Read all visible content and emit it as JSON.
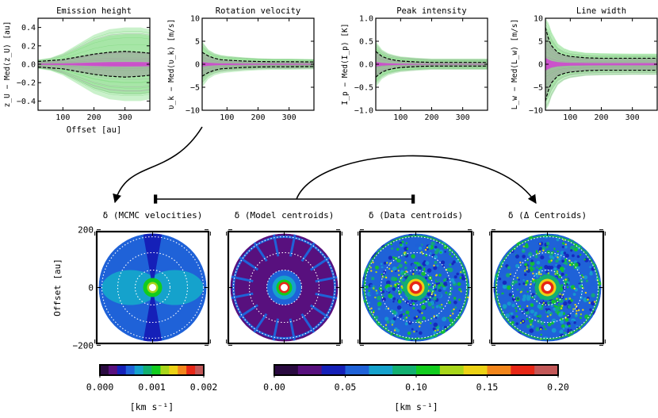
{
  "chart_data": [
    {
      "type": "line",
      "title": "Emission height",
      "xlabel": "Offset [au]",
      "ylabel": "z_U − Med(z_U) [au]",
      "xlim": [
        20,
        380
      ],
      "ylim": [
        -0.5,
        0.5
      ],
      "xticks": [
        "100",
        "200",
        "300"
      ],
      "yticks": [
        "0.4",
        "0.2",
        "0.0",
        "−0.2",
        "−0.4"
      ],
      "x": [
        20,
        60,
        100,
        150,
        200,
        250,
        300,
        350,
        380
      ],
      "series": [
        {
          "name": "upper envelope",
          "values": [
            0.03,
            0.04,
            0.05,
            0.08,
            0.11,
            0.13,
            0.14,
            0.13,
            0.12
          ]
        },
        {
          "name": "lower envelope",
          "values": [
            -0.03,
            -0.04,
            -0.05,
            -0.08,
            -0.11,
            -0.13,
            -0.14,
            -0.13,
            -0.12
          ]
        },
        {
          "name": "green spread",
          "values": [
            0.05,
            0.07,
            0.12,
            0.22,
            0.32,
            0.38,
            0.4,
            0.4,
            0.38
          ]
        }
      ]
    },
    {
      "type": "line",
      "title": "Rotation velocity",
      "xlabel": "",
      "ylabel": "υ_k − Med(υ_k) [m/s]",
      "xlim": [
        20,
        380
      ],
      "ylim": [
        -10,
        10
      ],
      "xticks": [
        "100",
        "200",
        "300"
      ],
      "yticks": [
        "10",
        "5",
        "0",
        "−5",
        "−10"
      ],
      "x": [
        20,
        40,
        60,
        80,
        100,
        150,
        200,
        250,
        300,
        380
      ],
      "series": [
        {
          "name": "upper envelope",
          "values": [
            2.6,
            1.8,
            1.3,
            1.0,
            0.9,
            0.7,
            0.6,
            0.55,
            0.55,
            0.5
          ]
        },
        {
          "name": "lower envelope",
          "values": [
            -2.6,
            -1.8,
            -1.3,
            -1.0,
            -0.9,
            -0.7,
            -0.6,
            -0.55,
            -0.55,
            -0.5
          ]
        },
        {
          "name": "green spread",
          "values": [
            5.0,
            3.2,
            2.4,
            2.0,
            1.8,
            1.5,
            1.3,
            1.2,
            1.2,
            1.1
          ]
        }
      ]
    },
    {
      "type": "line",
      "title": "Peak intensity",
      "xlabel": "",
      "ylabel": "I_p − Med(I_p) [K]",
      "xlim": [
        20,
        380
      ],
      "ylim": [
        -1.0,
        1.0
      ],
      "xticks": [
        "100",
        "200",
        "300"
      ],
      "yticks": [
        "1.0",
        "0.5",
        "0.0",
        "−0.5",
        "−1.0"
      ],
      "x": [
        20,
        40,
        60,
        80,
        100,
        150,
        200,
        250,
        300,
        380
      ],
      "series": [
        {
          "name": "upper envelope",
          "values": [
            0.28,
            0.17,
            0.12,
            0.09,
            0.07,
            0.05,
            0.04,
            0.04,
            0.04,
            0.04
          ]
        },
        {
          "name": "lower envelope",
          "values": [
            -0.28,
            -0.17,
            -0.12,
            -0.09,
            -0.07,
            -0.05,
            -0.04,
            -0.04,
            -0.04,
            -0.04
          ]
        },
        {
          "name": "green spread",
          "values": [
            0.5,
            0.32,
            0.24,
            0.2,
            0.17,
            0.14,
            0.12,
            0.12,
            0.12,
            0.12
          ]
        }
      ]
    },
    {
      "type": "line",
      "title": "Line width",
      "xlabel": "",
      "ylabel": "L_w − Med(L_w) [m/s]",
      "xlim": [
        20,
        380
      ],
      "ylim": [
        -10,
        10
      ],
      "xticks": [
        "100",
        "200",
        "300"
      ],
      "yticks": [
        "10",
        "5",
        "0",
        "−5",
        "−10"
      ],
      "x": [
        20,
        30,
        40,
        60,
        80,
        100,
        150,
        200,
        300,
        380
      ],
      "series": [
        {
          "name": "upper envelope",
          "values": [
            8.0,
            5.5,
            4.0,
            2.5,
            2.0,
            1.7,
            1.4,
            1.3,
            1.3,
            1.3
          ]
        },
        {
          "name": "lower envelope",
          "values": [
            -8.0,
            -5.5,
            -4.0,
            -2.5,
            -2.0,
            -1.7,
            -1.4,
            -1.3,
            -1.3,
            -1.3
          ]
        },
        {
          "name": "green spread",
          "values": [
            10,
            9.0,
            7.0,
            4.5,
            3.5,
            3.0,
            2.5,
            2.4,
            2.3,
            2.3
          ]
        }
      ]
    },
    {
      "type": "heatmap",
      "title": "δ (MCMC velocities)",
      "ylabel": "Offset [au]",
      "yticks": [
        "200",
        "0",
        "−200"
      ],
      "colorbar": "small"
    },
    {
      "type": "heatmap",
      "title": "δ (Model centroids)",
      "colorbar": "large"
    },
    {
      "type": "heatmap",
      "title": "δ (Data centroids)",
      "colorbar": "large"
    },
    {
      "type": "heatmap",
      "title": "δ (Δ Centroids)",
      "colorbar": "large"
    }
  ],
  "colorbars": {
    "small": {
      "ticks": [
        "0.000",
        "0.001",
        "0.002"
      ],
      "range": [
        0,
        0.002
      ],
      "label": "[km s⁻¹]",
      "colors": [
        "#2a0a40",
        "#58107e",
        "#1520b8",
        "#1f62d8",
        "#15a2cc",
        "#12b070",
        "#12cc1e",
        "#a8d61a",
        "#ecd215",
        "#f3861b",
        "#e72716",
        "#c35858"
      ]
    },
    "large": {
      "ticks": [
        "0.00",
        "0.05",
        "0.10",
        "0.15",
        "0.20"
      ],
      "range": [
        0,
        0.2
      ],
      "label": "[km s⁻¹]",
      "colors": [
        "#2a0a40",
        "#58107e",
        "#1520b8",
        "#1f62d8",
        "#15a2cc",
        "#12b070",
        "#12cc1e",
        "#a8d61a",
        "#ecd215",
        "#f3861b",
        "#e72716",
        "#c35858"
      ]
    }
  }
}
